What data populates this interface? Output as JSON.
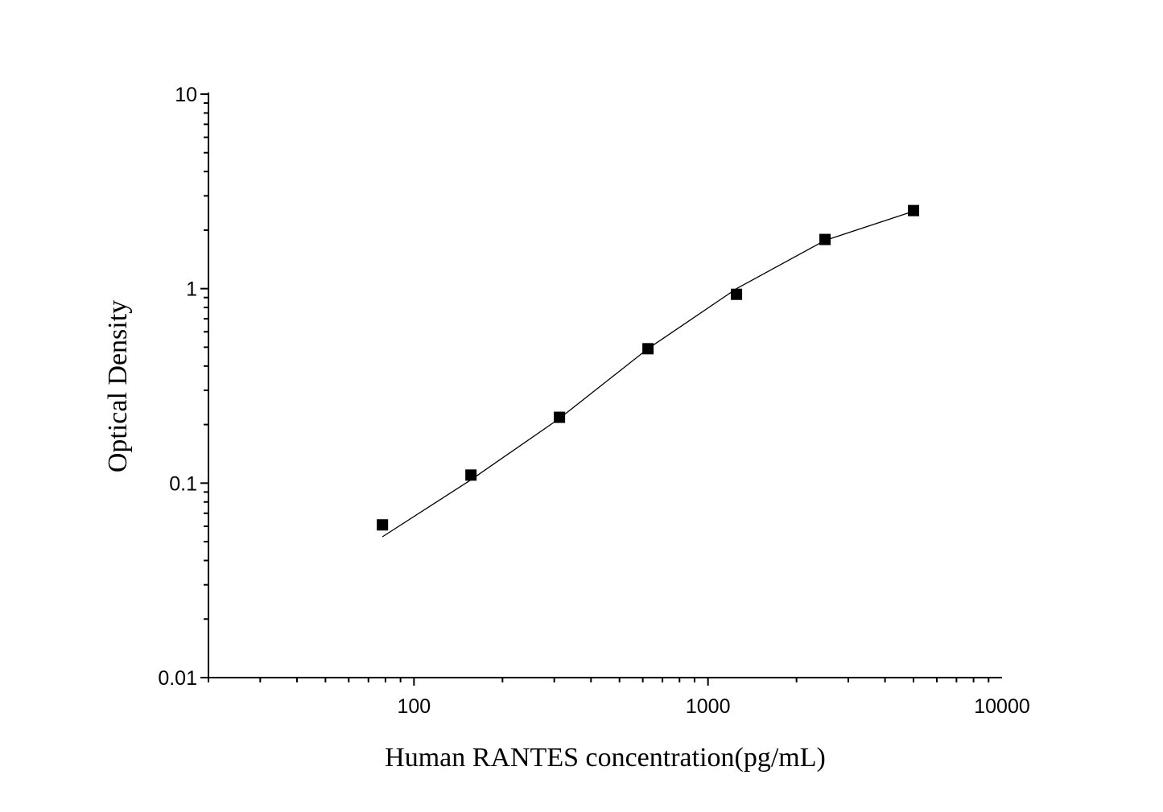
{
  "chart_data": {
    "type": "scatter",
    "title": "",
    "xlabel": "Human RANTES concentration(pg/mL)",
    "ylabel": "Optical Density",
    "xscale": "log",
    "yscale": "log",
    "xlim": [
      20,
      10000
    ],
    "ylim": [
      0.01,
      10
    ],
    "x_ticks": [
      100,
      1000,
      10000
    ],
    "x_tick_labels": [
      "100",
      "1000",
      "10000"
    ],
    "y_ticks": [
      0.01,
      0.1,
      1,
      10
    ],
    "y_tick_labels": [
      "0.01",
      "0.1",
      "1",
      "10"
    ],
    "grid": false,
    "legend": "none",
    "series": [
      {
        "marker": "square",
        "color": "#000000",
        "x": [
          78.125,
          156.25,
          312.5,
          625,
          1250,
          2500,
          5000
        ],
        "y": [
          0.061,
          0.11,
          0.218,
          0.491,
          0.935,
          1.79,
          2.52
        ]
      }
    ],
    "fit_curve": {
      "color": "#000000",
      "x": [
        78.125,
        156.25,
        312.5,
        625,
        1250,
        2500,
        5000
      ],
      "y": [
        0.053,
        0.104,
        0.215,
        0.491,
        1.0,
        1.77,
        2.5
      ]
    }
  }
}
